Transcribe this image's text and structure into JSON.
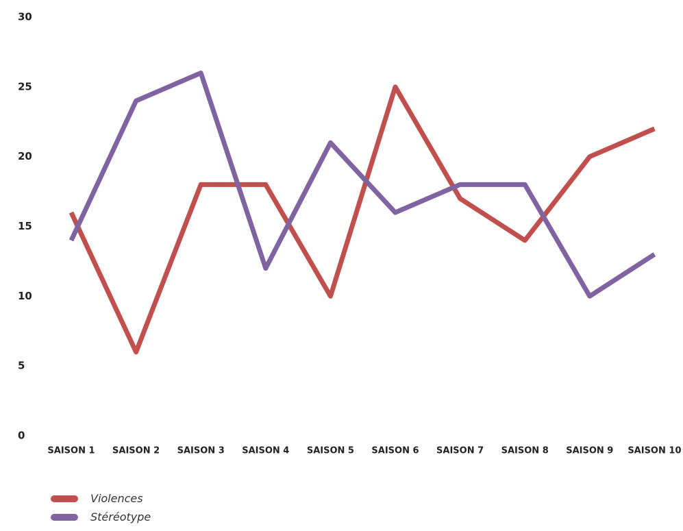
{
  "chart_data": {
    "type": "line",
    "categories": [
      "SAISON 1",
      "SAISON 2",
      "SAISON 3",
      "SAISON 4",
      "SAISON 5",
      "SAISON 6",
      "SAISON 7",
      "SAISON 8",
      "SAISON 9",
      "SAISON 10"
    ],
    "series": [
      {
        "name": "Violences",
        "color": "#c0504d",
        "values": [
          16,
          6,
          18,
          18,
          10,
          25,
          17,
          14,
          20,
          22
        ]
      },
      {
        "name": "Stéréotype",
        "color": "#8064a2",
        "values": [
          14,
          24,
          26,
          12,
          21,
          16,
          18,
          18,
          10,
          13
        ]
      }
    ],
    "y_ticks": [
      "0",
      "5",
      "10",
      "15",
      "20",
      "25",
      "30"
    ],
    "ylim": [
      0,
      30
    ],
    "grid": false,
    "legend_position": "bottom-left"
  }
}
